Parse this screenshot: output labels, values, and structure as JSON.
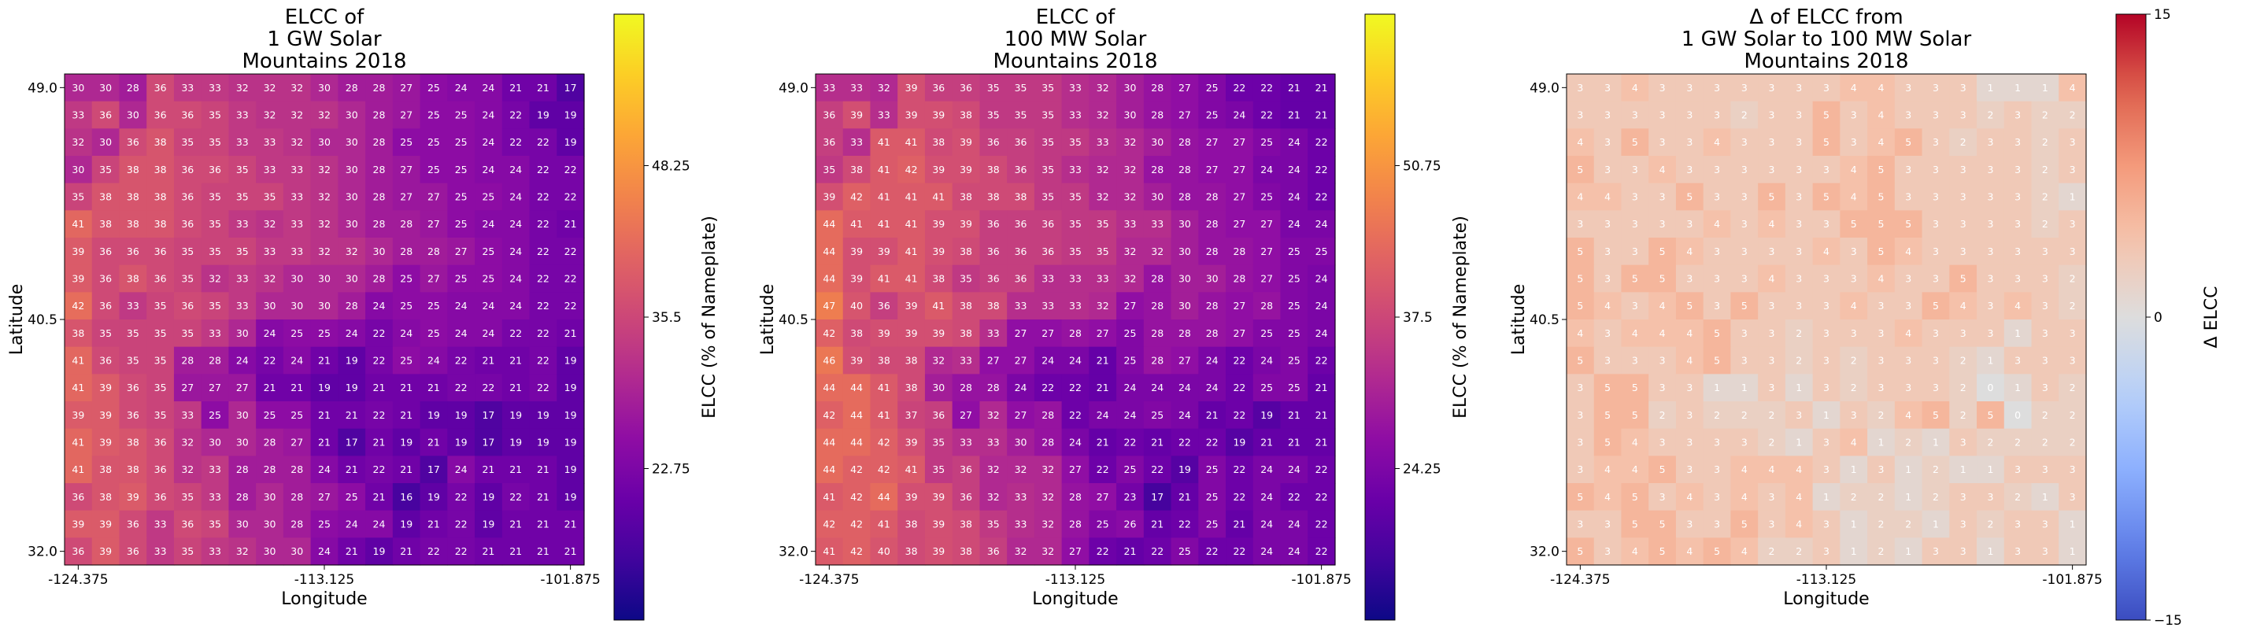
{
  "chart_data": [
    {
      "type": "heatmap",
      "title": [
        "ELCC of",
        "1 GW Solar",
        "Mountains 2018"
      ],
      "xlabel": "Longitude",
      "ylabel": "Latitude",
      "x_ticks": [
        "-124.375",
        "-113.125",
        "-101.875"
      ],
      "y_ticks": [
        "49.0",
        "40.5",
        "32.0"
      ],
      "colorbar": {
        "label": "ELCC (% of Nameplate)",
        "colormap": "plasma",
        "ticks": [
          "48.25",
          "35.5",
          "22.75"
        ],
        "tick_values": [
          48.25,
          35.5,
          22.75
        ],
        "range": [
          10,
          61
        ]
      },
      "grid": [
        [
          30,
          30,
          28,
          36,
          33,
          33,
          32,
          32,
          32,
          30,
          28,
          28,
          27,
          25,
          24,
          24,
          21,
          21,
          17
        ],
        [
          33,
          36,
          30,
          36,
          36,
          35,
          33,
          32,
          32,
          32,
          30,
          28,
          27,
          25,
          25,
          24,
          22,
          19,
          19
        ],
        [
          32,
          30,
          36,
          38,
          35,
          35,
          33,
          33,
          32,
          30,
          30,
          28,
          25,
          25,
          25,
          24,
          22,
          22,
          19
        ],
        [
          30,
          35,
          38,
          38,
          36,
          36,
          35,
          33,
          33,
          32,
          30,
          28,
          27,
          25,
          25,
          24,
          24,
          22,
          22
        ],
        [
          35,
          38,
          38,
          38,
          36,
          35,
          35,
          35,
          33,
          32,
          30,
          28,
          27,
          27,
          25,
          25,
          24,
          22,
          22
        ],
        [
          41,
          38,
          38,
          38,
          36,
          35,
          33,
          32,
          33,
          32,
          30,
          28,
          28,
          27,
          25,
          24,
          24,
          22,
          21
        ],
        [
          39,
          36,
          36,
          36,
          35,
          35,
          35,
          33,
          33,
          32,
          32,
          30,
          28,
          28,
          27,
          25,
          24,
          22,
          22
        ],
        [
          39,
          36,
          38,
          36,
          35,
          32,
          33,
          32,
          30,
          30,
          30,
          28,
          25,
          27,
          25,
          25,
          24,
          22,
          22
        ],
        [
          42,
          36,
          33,
          35,
          36,
          35,
          33,
          30,
          30,
          30,
          28,
          24,
          25,
          25,
          24,
          24,
          24,
          22,
          22
        ],
        [
          38,
          35,
          35,
          35,
          35,
          33,
          30,
          24,
          25,
          25,
          24,
          22,
          24,
          25,
          24,
          24,
          22,
          22,
          21
        ],
        [
          41,
          36,
          35,
          35,
          28,
          28,
          24,
          22,
          24,
          21,
          19,
          22,
          25,
          24,
          22,
          21,
          21,
          22,
          19
        ],
        [
          41,
          39,
          36,
          35,
          27,
          27,
          27,
          21,
          21,
          19,
          19,
          21,
          21,
          21,
          22,
          22,
          21,
          22,
          19
        ],
        [
          39,
          39,
          36,
          35,
          33,
          25,
          30,
          25,
          25,
          21,
          21,
          22,
          21,
          19,
          19,
          17,
          19,
          19,
          19
        ],
        [
          41,
          39,
          38,
          36,
          32,
          30,
          30,
          28,
          27,
          21,
          17,
          21,
          19,
          21,
          19,
          17,
          19,
          19,
          19
        ],
        [
          41,
          38,
          38,
          36,
          32,
          33,
          28,
          28,
          28,
          24,
          21,
          22,
          21,
          17,
          24,
          21,
          21,
          21,
          19
        ],
        [
          36,
          38,
          39,
          36,
          35,
          33,
          28,
          30,
          28,
          27,
          25,
          21,
          16,
          19,
          22,
          19,
          22,
          21,
          19
        ],
        [
          39,
          39,
          36,
          33,
          36,
          35,
          30,
          30,
          28,
          25,
          24,
          24,
          19,
          21,
          22,
          19,
          21,
          21,
          21
        ],
        [
          36,
          39,
          36,
          33,
          35,
          33,
          32,
          30,
          30,
          24,
          21,
          19,
          21,
          22,
          22,
          21,
          21,
          21,
          21
        ]
      ]
    },
    {
      "type": "heatmap",
      "title": [
        "ELCC of",
        "100 MW Solar",
        "Mountains 2018"
      ],
      "xlabel": "Longitude",
      "ylabel": "Latitude",
      "x_ticks": [
        "-124.375",
        "-113.125",
        "-101.875"
      ],
      "y_ticks": [
        "49.0",
        "40.5",
        "32.0"
      ],
      "colorbar": {
        "label": "ELCC (% of Nameplate)",
        "colormap": "plasma",
        "ticks": [
          "50.75",
          "37.5",
          "24.25"
        ],
        "tick_values": [
          50.75,
          37.5,
          24.25
        ],
        "range": [
          11,
          64
        ]
      },
      "grid": [
        [
          33,
          33,
          32,
          39,
          36,
          36,
          35,
          35,
          35,
          33,
          32,
          30,
          28,
          27,
          25,
          22,
          22,
          21,
          21
        ],
        [
          36,
          39,
          33,
          39,
          39,
          38,
          35,
          35,
          35,
          33,
          32,
          30,
          28,
          27,
          25,
          24,
          22,
          21,
          21
        ],
        [
          36,
          33,
          41,
          41,
          38,
          39,
          36,
          36,
          35,
          35,
          33,
          32,
          30,
          28,
          27,
          27,
          25,
          24,
          22
        ],
        [
          35,
          38,
          41,
          42,
          39,
          39,
          38,
          36,
          35,
          33,
          32,
          32,
          28,
          28,
          27,
          27,
          24,
          24,
          22
        ],
        [
          39,
          42,
          41,
          41,
          41,
          38,
          38,
          38,
          35,
          35,
          32,
          32,
          30,
          28,
          28,
          27,
          25,
          24,
          22
        ],
        [
          44,
          41,
          41,
          41,
          39,
          39,
          36,
          36,
          36,
          35,
          35,
          33,
          33,
          30,
          28,
          27,
          27,
          24,
          24
        ],
        [
          44,
          39,
          39,
          41,
          39,
          38,
          36,
          36,
          36,
          35,
          35,
          32,
          32,
          30,
          28,
          28,
          27,
          25,
          25
        ],
        [
          44,
          39,
          41,
          41,
          38,
          35,
          36,
          36,
          33,
          33,
          33,
          32,
          28,
          30,
          30,
          28,
          27,
          25,
          24
        ],
        [
          47,
          40,
          36,
          39,
          41,
          38,
          38,
          33,
          33,
          33,
          32,
          27,
          28,
          30,
          28,
          27,
          28,
          25,
          24
        ],
        [
          42,
          38,
          39,
          39,
          39,
          38,
          33,
          27,
          27,
          28,
          27,
          25,
          28,
          28,
          28,
          27,
          25,
          25,
          24
        ],
        [
          46,
          39,
          38,
          38,
          32,
          33,
          27,
          27,
          24,
          24,
          21,
          25,
          28,
          27,
          24,
          22,
          24,
          25,
          22
        ],
        [
          44,
          44,
          41,
          38,
          30,
          28,
          28,
          24,
          22,
          22,
          21,
          24,
          24,
          24,
          24,
          22,
          25,
          25,
          21
        ],
        [
          42,
          44,
          41,
          37,
          36,
          27,
          32,
          27,
          28,
          22,
          24,
          24,
          25,
          24,
          21,
          22,
          19,
          21,
          21
        ],
        [
          44,
          44,
          42,
          39,
          35,
          33,
          33,
          30,
          28,
          24,
          21,
          22,
          21,
          22,
          22,
          19,
          21,
          21,
          21
        ],
        [
          44,
          42,
          42,
          41,
          35,
          36,
          32,
          32,
          32,
          27,
          22,
          25,
          22,
          19,
          25,
          22,
          24,
          24,
          22
        ],
        [
          41,
          42,
          44,
          39,
          39,
          36,
          32,
          33,
          32,
          28,
          27,
          23,
          17,
          21,
          25,
          22,
          24,
          22,
          22
        ],
        [
          42,
          42,
          41,
          38,
          39,
          38,
          35,
          33,
          32,
          28,
          25,
          26,
          21,
          22,
          25,
          21,
          24,
          24,
          22
        ],
        [
          41,
          42,
          40,
          38,
          39,
          38,
          36,
          32,
          32,
          27,
          22,
          21,
          22,
          25,
          22,
          22,
          24,
          24,
          22
        ]
      ]
    },
    {
      "type": "heatmap",
      "title": [
        "Δ of ELCC from",
        "1 GW Solar to 100 MW Solar",
        "Mountains 2018"
      ],
      "xlabel": "Longitude",
      "ylabel": "Latitude",
      "x_ticks": [
        "-124.375",
        "-113.125",
        "-101.875"
      ],
      "y_ticks": [
        "49.0",
        "40.5",
        "32.0"
      ],
      "colorbar": {
        "label": "Δ ELCC",
        "colormap": "coolwarm",
        "ticks": [
          "15",
          "0",
          "−15"
        ],
        "tick_values": [
          15,
          0,
          -15
        ],
        "range": [
          -15,
          15
        ]
      },
      "grid": [
        [
          3,
          3,
          4,
          3,
          3,
          3,
          3,
          3,
          3,
          3,
          4,
          4,
          3,
          3,
          3,
          1,
          1,
          1,
          4
        ],
        [
          3,
          3,
          3,
          3,
          3,
          3,
          2,
          3,
          3,
          5,
          3,
          4,
          3,
          3,
          3,
          2,
          3,
          2,
          2
        ],
        [
          4,
          3,
          5,
          3,
          3,
          4,
          3,
          3,
          3,
          5,
          3,
          4,
          5,
          3,
          2,
          3,
          3,
          2,
          3
        ],
        [
          5,
          3,
          3,
          4,
          3,
          3,
          3,
          3,
          3,
          3,
          4,
          5,
          3,
          3,
          3,
          3,
          3,
          2,
          3
        ],
        [
          4,
          4,
          3,
          3,
          5,
          3,
          3,
          5,
          3,
          5,
          4,
          5,
          3,
          3,
          3,
          3,
          3,
          2,
          1
        ],
        [
          3,
          3,
          3,
          3,
          3,
          4,
          3,
          4,
          3,
          3,
          5,
          5,
          5,
          3,
          3,
          3,
          3,
          2,
          3
        ],
        [
          5,
          3,
          3,
          5,
          4,
          3,
          3,
          3,
          3,
          4,
          3,
          5,
          4,
          3,
          3,
          3,
          3,
          3,
          3
        ],
        [
          5,
          3,
          5,
          5,
          3,
          3,
          3,
          4,
          3,
          3,
          3,
          4,
          3,
          3,
          5,
          3,
          3,
          3,
          2
        ],
        [
          5,
          4,
          3,
          4,
          5,
          3,
          5,
          3,
          3,
          3,
          4,
          3,
          3,
          5,
          4,
          3,
          4,
          3,
          2
        ],
        [
          4,
          3,
          4,
          4,
          4,
          5,
          3,
          3,
          2,
          3,
          3,
          3,
          4,
          3,
          3,
          3,
          1,
          3,
          3
        ],
        [
          5,
          3,
          3,
          3,
          4,
          5,
          3,
          3,
          2,
          3,
          2,
          3,
          3,
          3,
          2,
          1,
          3,
          3,
          3
        ],
        [
          3,
          5,
          5,
          3,
          3,
          1,
          1,
          3,
          1,
          3,
          2,
          3,
          3,
          3,
          2,
          0,
          1,
          3,
          2
        ],
        [
          3,
          5,
          5,
          2,
          3,
          2,
          2,
          2,
          3,
          1,
          3,
          2,
          4,
          5,
          2,
          5,
          0,
          2,
          2
        ],
        [
          3,
          5,
          4,
          3,
          3,
          3,
          3,
          2,
          1,
          3,
          4,
          1,
          2,
          1,
          3,
          2,
          2,
          2,
          2
        ],
        [
          3,
          4,
          4,
          5,
          3,
          3,
          4,
          4,
          4,
          3,
          1,
          3,
          1,
          2,
          1,
          1,
          3,
          3,
          3
        ],
        [
          5,
          4,
          5,
          3,
          4,
          3,
          4,
          3,
          4,
          1,
          2,
          2,
          1,
          2,
          3,
          3,
          2,
          1,
          3
        ],
        [
          3,
          3,
          5,
          5,
          3,
          3,
          5,
          3,
          4,
          3,
          1,
          2,
          2,
          1,
          3,
          2,
          3,
          3,
          1
        ],
        [
          5,
          3,
          4,
          5,
          4,
          5,
          4,
          2,
          2,
          3,
          1,
          2,
          1,
          3,
          3,
          1,
          3,
          3,
          1
        ]
      ]
    }
  ]
}
